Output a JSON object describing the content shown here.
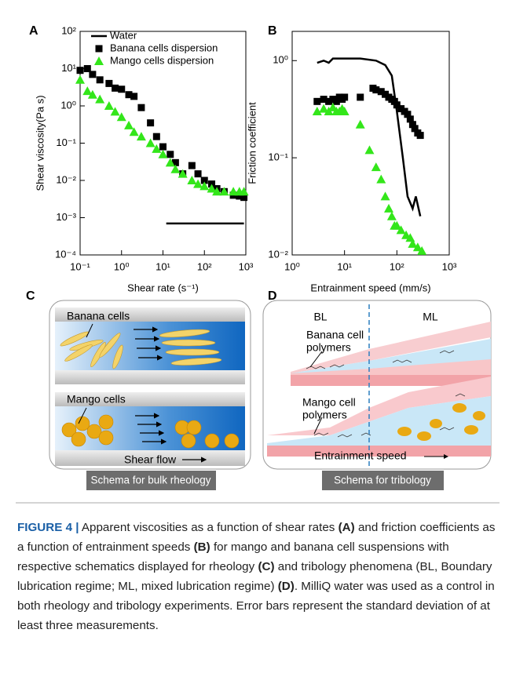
{
  "chart_data": [
    {
      "type": "scatter",
      "panel_label": "A",
      "xlabel": "Shear rate (s⁻¹)",
      "ylabel": "Shear viscosity(Pa s)",
      "xscale": "log",
      "yscale": "log",
      "xlim": [
        0.1,
        1000
      ],
      "ylim": [
        0.0001,
        100
      ],
      "xticks": [
        {
          "value": 0.1,
          "label": "10⁻¹"
        },
        {
          "value": 1,
          "label": "10⁰"
        },
        {
          "value": 10,
          "label": "10¹"
        },
        {
          "value": 100,
          "label": "10²"
        },
        {
          "value": 1000,
          "label": "10³"
        }
      ],
      "yticks": [
        {
          "value": 0.0001,
          "label": "10⁻⁴"
        },
        {
          "value": 0.001,
          "label": "10⁻³"
        },
        {
          "value": 0.01,
          "label": "10⁻²"
        },
        {
          "value": 0.1,
          "label": "10⁻¹"
        },
        {
          "value": 1,
          "label": "10⁰"
        },
        {
          "value": 10,
          "label": "10¹"
        },
        {
          "value": 100,
          "label": "10²"
        }
      ],
      "legend": "upper left",
      "series": [
        {
          "name": "Water",
          "color": "#000000",
          "marker": "line",
          "x": [
            12,
            900
          ],
          "values": [
            0.0007,
            0.0007
          ]
        },
        {
          "name": "Banana cells dispersion",
          "color": "#000000",
          "marker": "square",
          "x": [
            0.1,
            0.15,
            0.2,
            0.3,
            0.5,
            0.7,
            1,
            1.5,
            2,
            3,
            5,
            7,
            10,
            15,
            20,
            30,
            50,
            70,
            100,
            150,
            200,
            300,
            500,
            700,
            900
          ],
          "values": [
            9,
            10,
            7,
            5,
            4,
            3,
            2.8,
            2,
            1.8,
            0.9,
            0.35,
            0.15,
            0.08,
            0.05,
            0.03,
            0.015,
            0.025,
            0.015,
            0.01,
            0.008,
            0.006,
            0.005,
            0.004,
            0.0038,
            0.0035
          ]
        },
        {
          "name": "Mango cells dispersion",
          "color": "#33e61a",
          "marker": "triangle",
          "x": [
            0.1,
            0.15,
            0.2,
            0.3,
            0.5,
            0.7,
            1,
            1.5,
            2,
            3,
            5,
            7,
            10,
            15,
            20,
            30,
            50,
            70,
            100,
            150,
            200,
            300,
            500,
            700,
            900
          ],
          "values": [
            5,
            2.5,
            2,
            1.5,
            1,
            0.7,
            0.5,
            0.3,
            0.2,
            0.15,
            0.1,
            0.07,
            0.05,
            0.03,
            0.02,
            0.015,
            0.01,
            0.008,
            0.007,
            0.006,
            0.005,
            0.005,
            0.005,
            0.005,
            0.005
          ]
        }
      ]
    },
    {
      "type": "scatter",
      "panel_label": "B",
      "xlabel": "Entrainment speed (mm/s)",
      "ylabel": "Friction coefficient",
      "xscale": "log",
      "yscale": "log",
      "xlim": [
        1,
        1000
      ],
      "ylim": [
        0.01,
        2
      ],
      "xticks": [
        {
          "value": 1,
          "label": "10⁰"
        },
        {
          "value": 10,
          "label": "10¹"
        },
        {
          "value": 100,
          "label": "10²"
        },
        {
          "value": 1000,
          "label": "10³"
        }
      ],
      "yticks": [
        {
          "value": 0.01,
          "label": "10⁻²"
        },
        {
          "value": 0.1,
          "label": "10⁻¹"
        },
        {
          "value": 1,
          "label": "10⁰"
        }
      ],
      "series": [
        {
          "color": "#000000",
          "marker": "line",
          "x": [
            3,
            4,
            5,
            6,
            8,
            10,
            20,
            40,
            60,
            80,
            100,
            130,
            160,
            200,
            230,
            280
          ],
          "values": [
            0.95,
            1.0,
            0.95,
            1.05,
            1.05,
            1.05,
            1.05,
            1.0,
            0.9,
            0.7,
            0.3,
            0.1,
            0.04,
            0.03,
            0.04,
            0.025
          ]
        },
        {
          "color": "#000000",
          "marker": "square",
          "x": [
            3,
            4,
            5,
            6,
            7,
            8,
            9,
            10,
            20,
            35,
            40,
            50,
            60,
            70,
            80,
            90,
            100,
            120,
            140,
            160,
            180,
            200,
            220,
            250,
            280
          ],
          "values": [
            0.38,
            0.4,
            0.38,
            0.4,
            0.38,
            0.42,
            0.4,
            0.42,
            0.42,
            0.52,
            0.5,
            0.48,
            0.45,
            0.42,
            0.4,
            0.38,
            0.35,
            0.32,
            0.3,
            0.28,
            0.25,
            0.22,
            0.2,
            0.18,
            0.17
          ]
        },
        {
          "color": "#33e61a",
          "marker": "triangle",
          "x": [
            3,
            4,
            5,
            6,
            7,
            8,
            9,
            10,
            20,
            30,
            40,
            50,
            60,
            70,
            80,
            90,
            100,
            120,
            150,
            180,
            200,
            250,
            300
          ],
          "values": [
            0.3,
            0.32,
            0.3,
            0.33,
            0.3,
            0.3,
            0.32,
            0.3,
            0.22,
            0.12,
            0.08,
            0.06,
            0.04,
            0.03,
            0.025,
            0.02,
            0.02,
            0.018,
            0.016,
            0.015,
            0.013,
            0.012,
            0.011
          ]
        }
      ]
    }
  ],
  "panel_c": {
    "panel_label": "C",
    "banana": "Banana cells",
    "mango": "Mango cells",
    "flow": "Shear flow",
    "caption": "Schema for bulk rheology"
  },
  "panel_d": {
    "panel_label": "D",
    "bl": "BL",
    "ml": "ML",
    "banana": [
      "Banana cell",
      "polymers"
    ],
    "mango": [
      "Mango cell",
      "polymers"
    ],
    "speed": "Entrainment speed",
    "caption": "Schema for tribology"
  },
  "caption": {
    "label": "FIGURE 4 |",
    "text": [
      "Apparent viscosities as a function of shear rates",
      "(A)",
      "and friction coefficients as a function of entrainment speeds",
      "(B)",
      "for mango and banana cell suspensions with respective schematics displayed for rheology",
      "(C)",
      "and tribology phenomena (BL, Boundary lubrication regime; ML, mixed lubrication regime)",
      "(D)",
      ". MilliQ water was used as a control in both rheology and tribology experiments. Error bars represent the standard deviation of at least three measurements."
    ]
  }
}
